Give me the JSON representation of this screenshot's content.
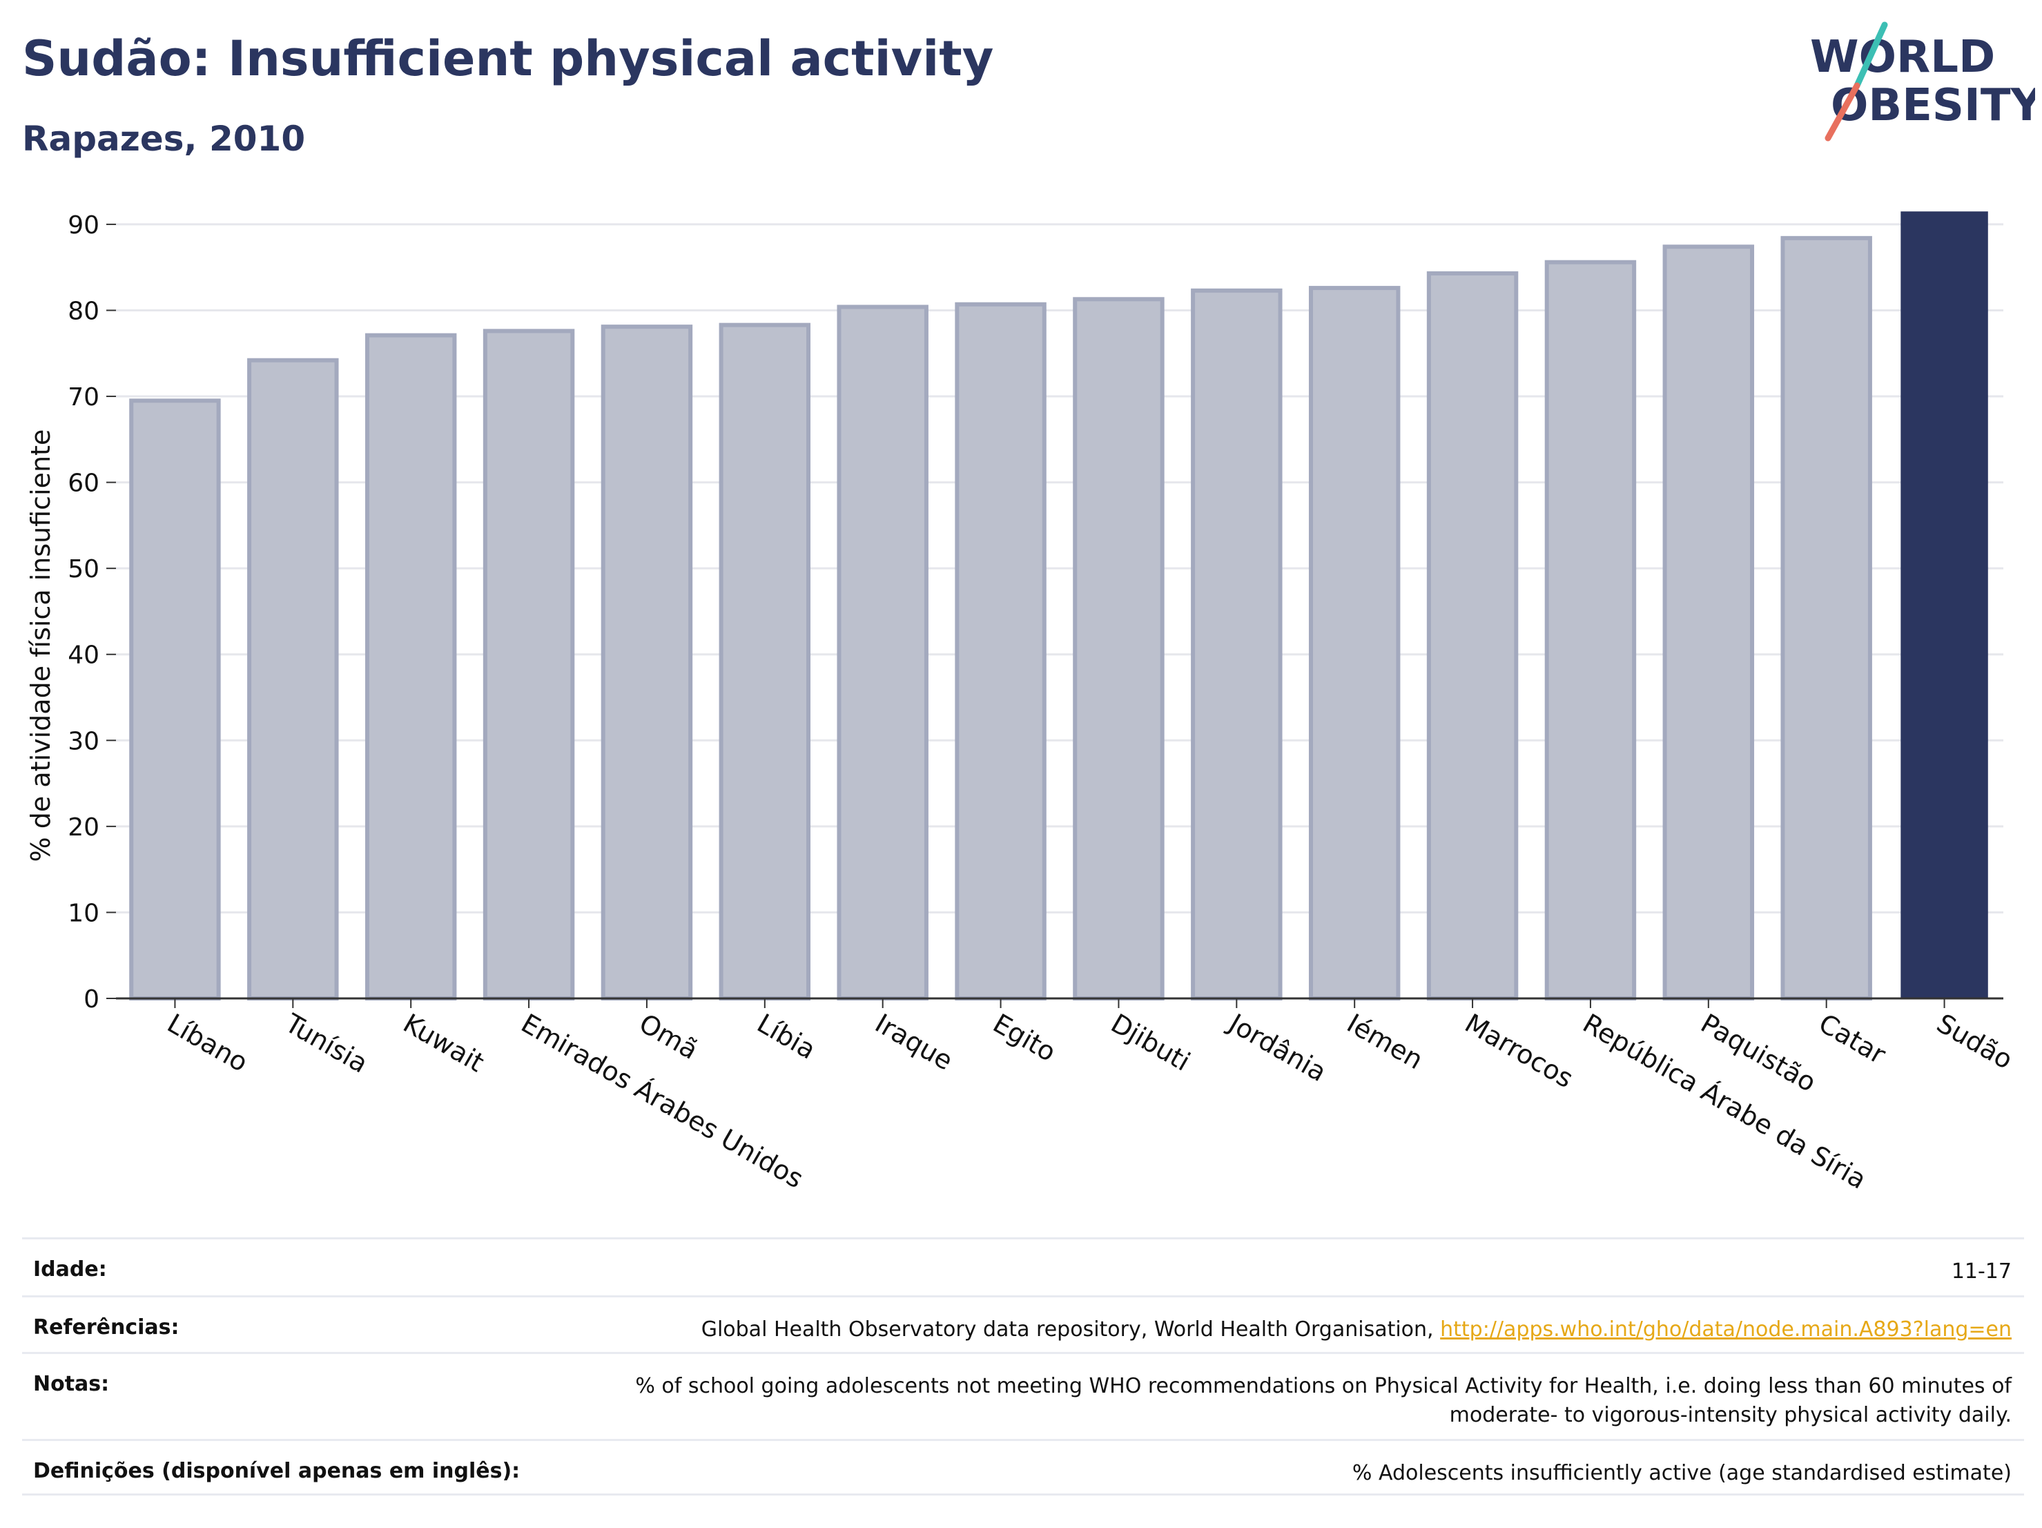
{
  "header": {
    "title": "Sudão: Insufficient physical activity",
    "subtitle": "Rapazes, 2010",
    "logo_line1": "WORLD",
    "logo_line2": "OBESITY"
  },
  "colors": {
    "highlight_bar": "#2b3660",
    "other_bar_fill": "#bcc0cd",
    "other_bar_stroke": "#a3a9be",
    "title": "#2b3660",
    "link": "#e6a817",
    "logo_teal": "#3cbfb4",
    "logo_coral": "#e8705e"
  },
  "chart_data": {
    "type": "bar",
    "ylabel": "% de atividade física insuficiente",
    "ylim": [
      0,
      92
    ],
    "yticks": [
      0,
      10,
      20,
      30,
      40,
      50,
      60,
      70,
      80,
      90
    ],
    "grid": true,
    "highlight": "Sudão",
    "categories": [
      "Líbano",
      "Tunísia",
      "Kuwait",
      "Emirados Árabes Unidos",
      "Omã",
      "Líbia",
      "Iraque",
      "Egito",
      "Djibuti",
      "Jordânia",
      "Iémen",
      "Marrocos",
      "República Árabe da Síria",
      "Paquistão",
      "Catar",
      "Sudão"
    ],
    "values": [
      69.5,
      74.2,
      77.1,
      77.6,
      78.1,
      78.3,
      80.4,
      80.7,
      81.3,
      82.3,
      82.6,
      84.3,
      85.6,
      87.4,
      88.4,
      91.5
    ]
  },
  "meta": [
    {
      "label": "Idade:",
      "value": "11-17"
    },
    {
      "label": "Referências:",
      "value": "Global Health Observatory data repository, World Health Organisation,",
      "link": "http://apps.who.int/gho/data/node.main.A893?lang=en"
    },
    {
      "label": "Notas:",
      "value": "% of school going adolescents not meeting WHO recommendations on Physical Activity for Health, i.e. doing less than 60 minutes of",
      "value2": "moderate- to vigorous-intensity physical activity daily."
    },
    {
      "label": "Definições (disponível apenas em inglês):",
      "value": "% Adolescents insufficiently active (age standardised estimate)"
    }
  ]
}
